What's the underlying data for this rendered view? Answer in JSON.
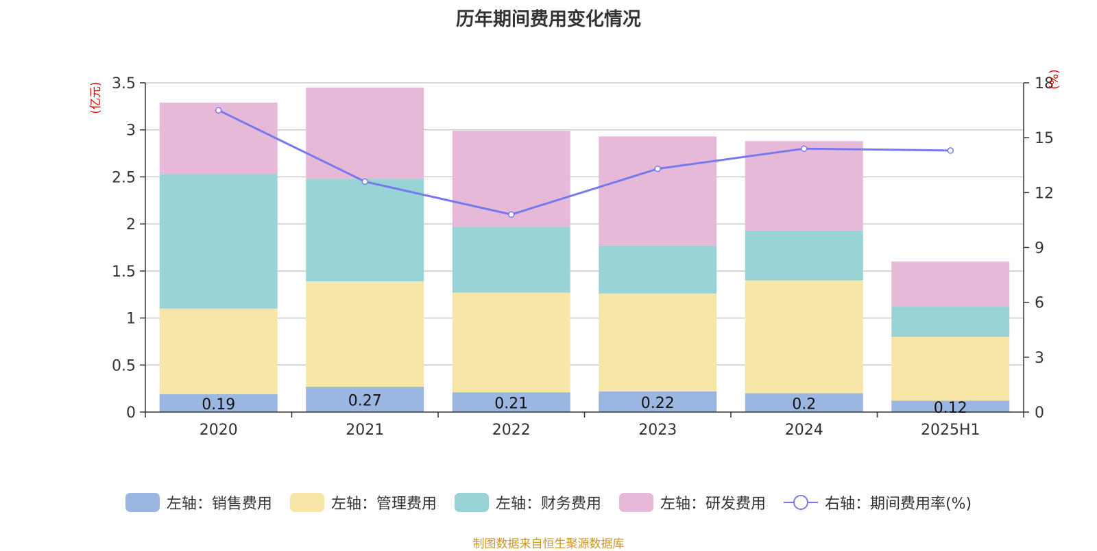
{
  "title": "历年期间费用变化情况",
  "source": "制图数据来自恒生聚源数据库",
  "left_axis_unit": "(亿元)",
  "right_axis_unit": "(%)",
  "chart_data": {
    "type": "bar",
    "stacked": true,
    "categories": [
      "2020",
      "2021",
      "2022",
      "2023",
      "2024",
      "2025H1"
    ],
    "y_left": {
      "min": 0,
      "max": 3.5,
      "ticks": [
        "0",
        "0.5",
        "1",
        "1.5",
        "2",
        "2.5",
        "3",
        "3.5"
      ],
      "unit": "(亿元)"
    },
    "y_right": {
      "min": 0,
      "max": 18,
      "ticks": [
        "0",
        "3",
        "6",
        "9",
        "12",
        "15",
        "18"
      ],
      "unit": "(%)"
    },
    "grid": true,
    "legend_position": "bottom",
    "series": [
      {
        "name": "左轴：销售费用",
        "axis": "left",
        "type": "bar",
        "color": "#9bb7e1",
        "values": [
          0.19,
          0.27,
          0.21,
          0.22,
          0.2,
          0.12
        ],
        "data_labels": [
          "0.19",
          "0.27",
          "0.21",
          "0.22",
          "0.2",
          "0.12"
        ]
      },
      {
        "name": "左轴：管理费用",
        "axis": "left",
        "type": "bar",
        "color": "#f7e6a8",
        "values": [
          0.91,
          1.12,
          1.06,
          1.04,
          1.2,
          0.68
        ]
      },
      {
        "name": "左轴：财务费用",
        "axis": "left",
        "type": "bar",
        "color": "#98d3d5",
        "values": [
          1.43,
          1.09,
          0.7,
          0.51,
          0.53,
          0.32
        ]
      },
      {
        "name": "左轴：研发费用",
        "axis": "left",
        "type": "bar",
        "color": "#e7b9d9",
        "values": [
          0.76,
          0.97,
          1.02,
          1.16,
          0.95,
          0.48
        ]
      },
      {
        "name": "右轴：期间费用率(%)",
        "axis": "right",
        "type": "line",
        "color": "#7678ed",
        "values": [
          16.5,
          12.6,
          10.8,
          13.3,
          14.4,
          14.3
        ]
      }
    ]
  }
}
